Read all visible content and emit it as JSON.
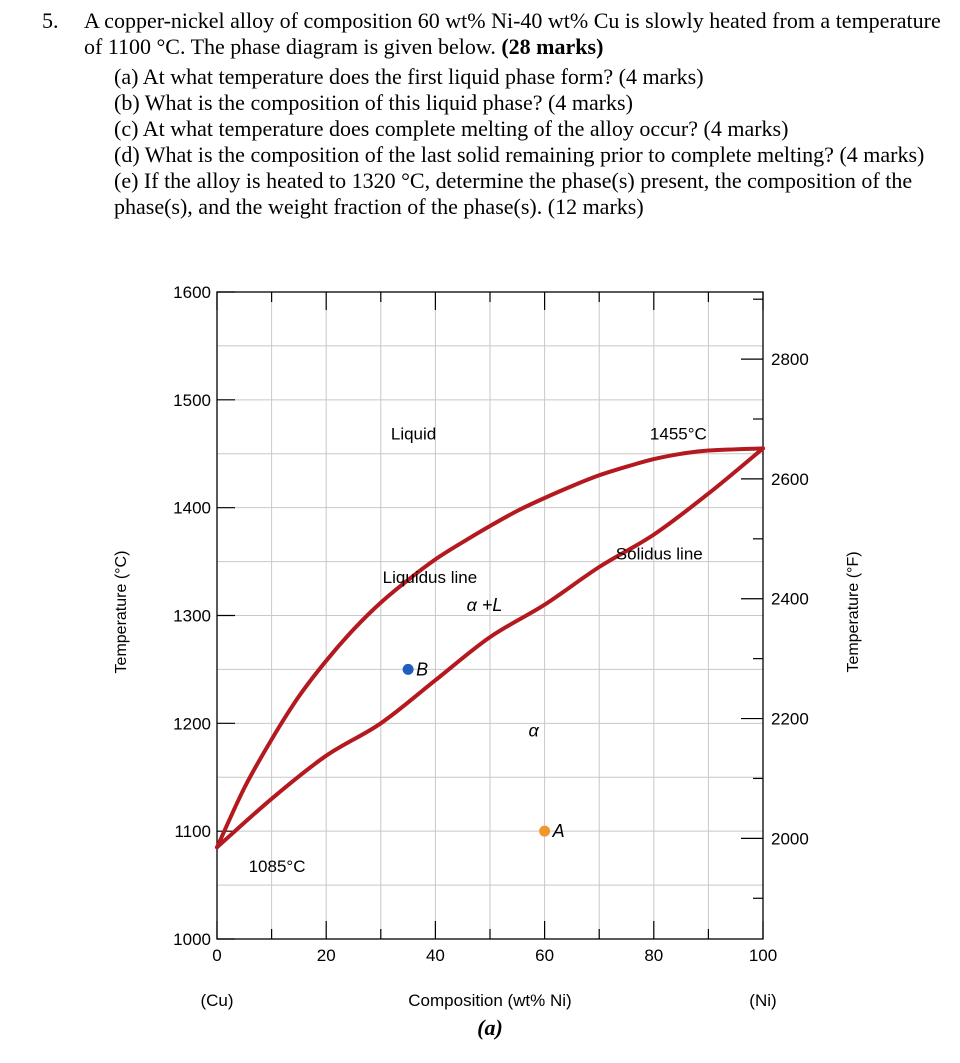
{
  "question": {
    "number": "5.",
    "stem_text": "A copper-nickel alloy of composition 60 wt% Ni-40 wt% Cu is slowly heated from a temperature of 1100 °C. The phase diagram is given below.",
    "stem_marks": "(28 marks)",
    "parts": [
      "(a) At what temperature does the first liquid phase form? (4 marks)",
      "(b) What is the composition of this liquid phase? (4 marks)",
      "(c) At what temperature does complete melting of the alloy occur? (4 marks)",
      "(d) What is the composition of the last solid remaining prior to complete melting? (4 marks)",
      "(e) If the alloy is heated to 1320 °C, determine the phase(s) present, the composition of the phase(s), and the weight fraction of the phase(s). (12 marks)"
    ]
  },
  "chart_data": {
    "type": "line",
    "title": "",
    "caption": "(a)",
    "xlabel": "Composition (wt% Ni)",
    "xlabel_left_end": "(Cu)",
    "xlabel_right_end": "(Ni)",
    "ylabel": "Temperature (°C)",
    "ylabel_right": "Temperature (°F)",
    "xlim": [
      0,
      100
    ],
    "ylim": [
      1000,
      1600
    ],
    "x_ticks": [
      "0",
      "20",
      "40",
      "60",
      "80",
      "100"
    ],
    "y_ticks": [
      "1000",
      "1100",
      "1200",
      "1300",
      "1400",
      "1500",
      "1600"
    ],
    "y_right_ticks": [
      "2000",
      "2200",
      "2400",
      "2600",
      "2800"
    ],
    "y_right_values_f": [
      2000,
      2200,
      2400,
      2600,
      2800
    ],
    "grid": true,
    "series": [
      {
        "name": "Liquidus line",
        "color": "#b3191f",
        "points": [
          [
            0,
            1085
          ],
          [
            5,
            1145
          ],
          [
            10,
            1193
          ],
          [
            15,
            1235
          ],
          [
            20,
            1270
          ],
          [
            25,
            1300
          ],
          [
            30,
            1325
          ],
          [
            35,
            1345
          ],
          [
            40,
            1363
          ],
          [
            45,
            1380
          ],
          [
            50,
            1397
          ],
          [
            55,
            1412
          ],
          [
            60,
            1427
          ],
          [
            65,
            1441
          ],
          [
            70,
            1454
          ],
          [
            75,
            1466
          ],
          [
            80,
            1478
          ],
          [
            85,
            1490
          ],
          [
            90,
            1503
          ],
          [
            95,
            1513
          ],
          [
            100,
            1455
          ]
        ]
      },
      {
        "name": "Solidus line",
        "color": "#b3191f",
        "points": [
          [
            0,
            1085
          ],
          [
            10,
            1130
          ],
          [
            20,
            1170
          ],
          [
            30,
            1200
          ],
          [
            40,
            1240
          ],
          [
            50,
            1280
          ],
          [
            60,
            1310
          ],
          [
            70,
            1345
          ],
          [
            80,
            1375
          ],
          [
            90,
            1413
          ],
          [
            100,
            1455
          ]
        ]
      }
    ],
    "annotations": [
      {
        "text": "Liquid",
        "x": 36,
        "y": 1463
      },
      {
        "text": "1455°C",
        "x": 84.5,
        "y": 1463
      },
      {
        "text": "Solidus line",
        "x": 81,
        "y": 1352
      },
      {
        "text": "Liquidus line",
        "x": 39,
        "y": 1330
      },
      {
        "text": "α +L",
        "x": 49,
        "y": 1304
      },
      {
        "text": "α",
        "x": 58,
        "y": 1188
      },
      {
        "text": "1085°C",
        "x": 11,
        "y": 1062
      }
    ],
    "points": [
      {
        "label": "B",
        "x": 35,
        "y": 1250,
        "color": "#1f5fbf"
      },
      {
        "label": "A",
        "x": 60,
        "y": 1100,
        "color": "#f0962e"
      }
    ]
  }
}
